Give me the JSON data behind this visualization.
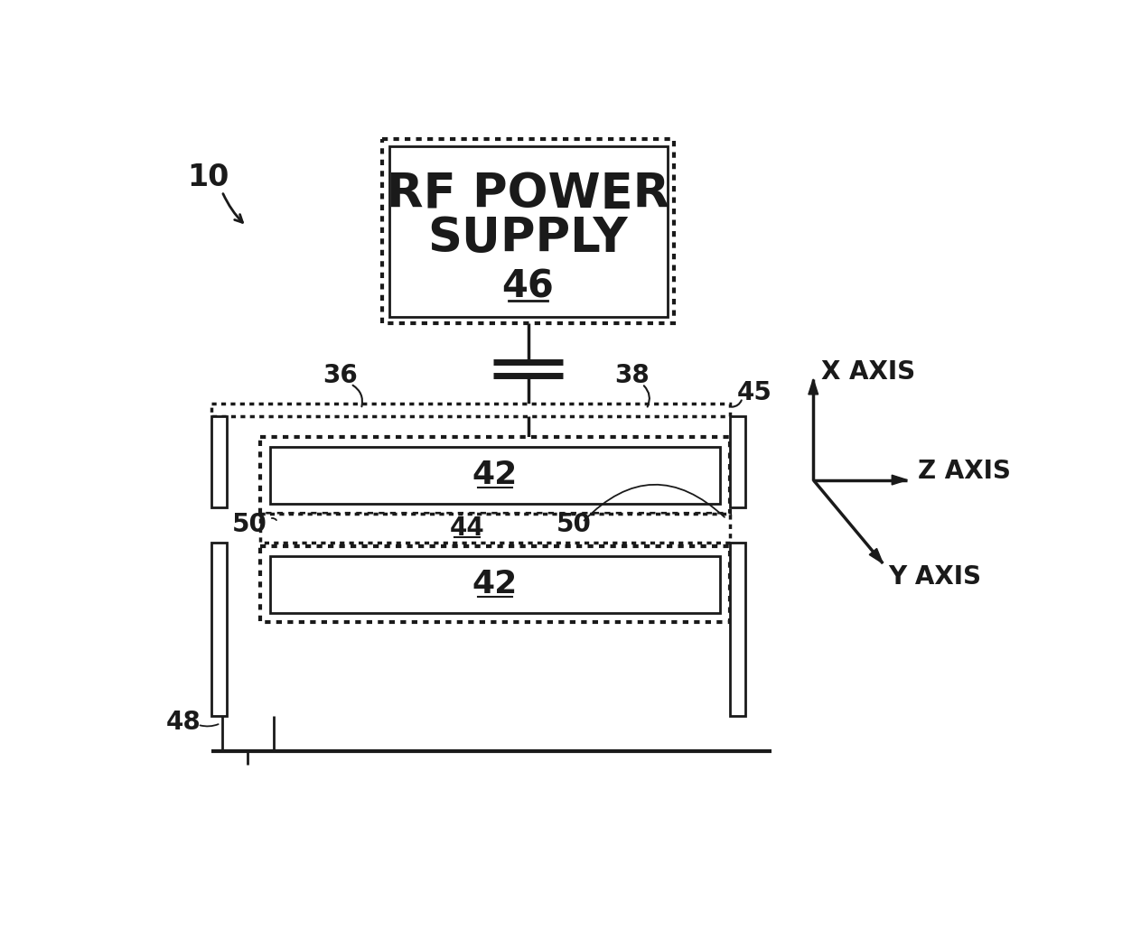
{
  "bg_color": "#ffffff",
  "lc": "#1a1a1a",
  "rf_text_line1": "RF POWER",
  "rf_text_line2": "SUPPLY",
  "rf_label": "46",
  "label_45": "45",
  "label_36": "36",
  "label_38": "38",
  "label_42": "42",
  "label_44": "44",
  "label_50a": "50",
  "label_50b": "50",
  "label_48": "48",
  "label_10": "10",
  "x_axis_text": "X AXIS",
  "y_axis_text": "Y AXIS",
  "z_axis_text": "Z AXIS"
}
